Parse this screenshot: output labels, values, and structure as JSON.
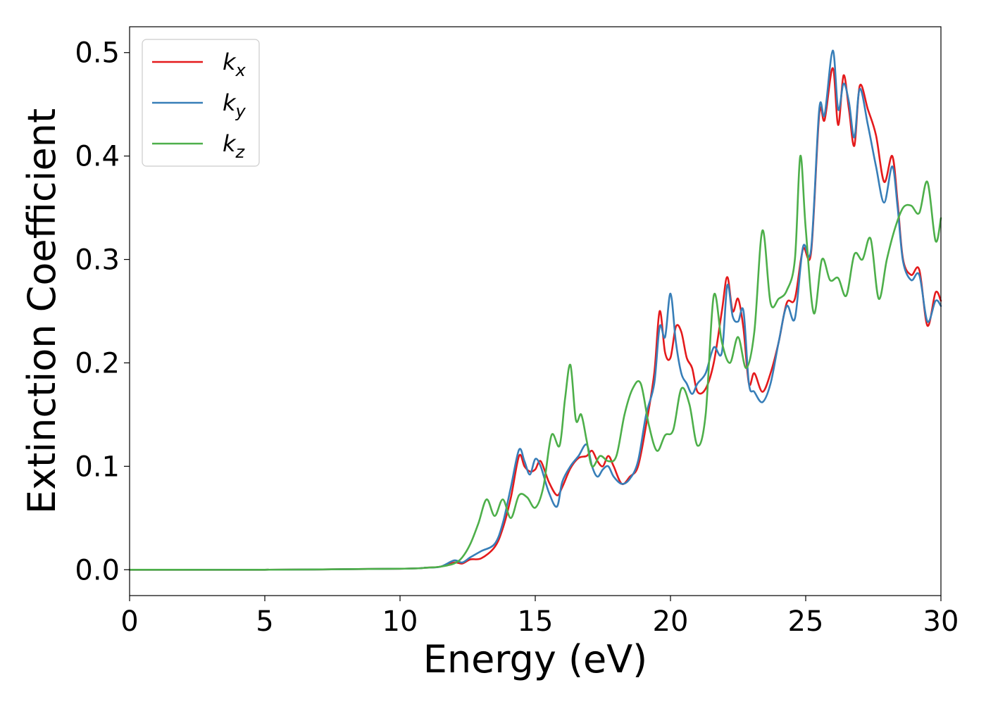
{
  "chart_data": {
    "type": "line",
    "xlabel": "Energy (eV)",
    "ylabel": "Extinction Coefficient",
    "xlim": [
      0,
      30
    ],
    "ylim": [
      -0.025,
      0.525
    ],
    "xticks": [
      "0",
      "5",
      "10",
      "15",
      "20",
      "25",
      "30"
    ],
    "yticks": [
      "0.0",
      "0.1",
      "0.2",
      "0.3",
      "0.4",
      "0.5"
    ],
    "grid": false,
    "legend_position": "top-left",
    "series": [
      {
        "name": "k_x",
        "label_base": "k",
        "label_sub": "x",
        "color": "#e41a1c",
        "x": [
          0,
          5,
          10,
          11,
          11.5,
          12,
          12.3,
          12.6,
          13,
          13.5,
          13.8,
          14.1,
          14.4,
          14.6,
          14.8,
          15,
          15.2,
          15.5,
          15.8,
          16,
          16.3,
          16.6,
          16.9,
          17.1,
          17.3,
          17.5,
          17.7,
          17.9,
          18.2,
          18.5,
          18.8,
          19.1,
          19.4,
          19.6,
          19.8,
          20,
          20.2,
          20.4,
          20.6,
          20.8,
          21,
          21.3,
          21.6,
          21.9,
          22.1,
          22.3,
          22.5,
          22.7,
          22.9,
          23.1,
          23.4,
          23.7,
          24,
          24.3,
          24.6,
          24.9,
          25.2,
          25.5,
          25.7,
          26,
          26.2,
          26.4,
          26.6,
          26.8,
          27,
          27.3,
          27.6,
          27.9,
          28.2,
          28.4,
          28.6,
          28.9,
          29.2,
          29.5,
          29.8,
          30
        ],
        "y": [
          0,
          0,
          0.001,
          0.002,
          0.003,
          0.007,
          0.006,
          0.01,
          0.011,
          0.022,
          0.04,
          0.07,
          0.11,
          0.1,
          0.095,
          0.097,
          0.105,
          0.085,
          0.072,
          0.08,
          0.098,
          0.108,
          0.11,
          0.115,
          0.105,
          0.1,
          0.11,
          0.1,
          0.083,
          0.09,
          0.1,
          0.14,
          0.19,
          0.25,
          0.21,
          0.205,
          0.235,
          0.23,
          0.205,
          0.195,
          0.172,
          0.175,
          0.2,
          0.25,
          0.283,
          0.25,
          0.262,
          0.233,
          0.18,
          0.19,
          0.172,
          0.19,
          0.22,
          0.258,
          0.262,
          0.31,
          0.307,
          0.44,
          0.435,
          0.485,
          0.43,
          0.478,
          0.445,
          0.41,
          0.468,
          0.445,
          0.42,
          0.375,
          0.4,
          0.355,
          0.3,
          0.285,
          0.29,
          0.236,
          0.268,
          0.26
        ]
      },
      {
        "name": "k_y",
        "label_base": "k",
        "label_sub": "y",
        "color": "#377eb8",
        "x": [
          0,
          5,
          10,
          11,
          11.5,
          12,
          12.3,
          12.6,
          13,
          13.5,
          13.8,
          14.1,
          14.4,
          14.6,
          14.8,
          15,
          15.2,
          15.5,
          15.8,
          16,
          16.3,
          16.6,
          16.9,
          17.1,
          17.3,
          17.5,
          17.7,
          17.9,
          18.2,
          18.5,
          18.8,
          19.1,
          19.4,
          19.6,
          19.8,
          20,
          20.2,
          20.4,
          20.6,
          20.8,
          21,
          21.3,
          21.6,
          21.9,
          22.1,
          22.3,
          22.5,
          22.7,
          22.9,
          23.1,
          23.4,
          23.7,
          24,
          24.3,
          24.6,
          24.9,
          25.2,
          25.5,
          25.7,
          26,
          26.2,
          26.4,
          26.6,
          26.8,
          27,
          27.3,
          27.6,
          27.9,
          28.2,
          28.4,
          28.6,
          28.9,
          29.2,
          29.5,
          29.8,
          30
        ],
        "y": [
          0,
          0,
          0.001,
          0.002,
          0.003,
          0.009,
          0.007,
          0.012,
          0.018,
          0.025,
          0.045,
          0.08,
          0.116,
          0.105,
          0.092,
          0.107,
          0.1,
          0.075,
          0.061,
          0.085,
          0.1,
          0.11,
          0.121,
          0.1,
          0.09,
          0.097,
          0.1,
          0.09,
          0.083,
          0.088,
          0.105,
          0.15,
          0.18,
          0.235,
          0.225,
          0.267,
          0.22,
          0.19,
          0.18,
          0.17,
          0.18,
          0.19,
          0.215,
          0.21,
          0.275,
          0.245,
          0.24,
          0.25,
          0.18,
          0.172,
          0.162,
          0.18,
          0.22,
          0.255,
          0.243,
          0.312,
          0.31,
          0.445,
          0.44,
          0.502,
          0.445,
          0.47,
          0.452,
          0.418,
          0.465,
          0.43,
          0.39,
          0.355,
          0.39,
          0.35,
          0.298,
          0.28,
          0.285,
          0.24,
          0.26,
          0.255
        ]
      },
      {
        "name": "k_z",
        "label_base": "k",
        "label_sub": "z",
        "color": "#4daf4a",
        "x": [
          0,
          5,
          10,
          11,
          11.5,
          12,
          12.3,
          12.6,
          12.9,
          13.2,
          13.5,
          13.8,
          14.1,
          14.4,
          14.7,
          15,
          15.3,
          15.6,
          15.9,
          16.1,
          16.3,
          16.5,
          16.7,
          16.9,
          17.1,
          17.4,
          17.7,
          18,
          18.3,
          18.6,
          18.9,
          19.2,
          19.5,
          19.8,
          20.1,
          20.4,
          20.7,
          21,
          21.3,
          21.6,
          21.9,
          22.2,
          22.5,
          22.8,
          23.1,
          23.4,
          23.7,
          24,
          24.3,
          24.6,
          24.8,
          25,
          25.3,
          25.6,
          25.9,
          26.2,
          26.5,
          26.8,
          27.1,
          27.4,
          27.7,
          28,
          28.3,
          28.6,
          28.9,
          29.2,
          29.5,
          29.8,
          30
        ],
        "y": [
          0,
          0,
          0.001,
          0.002,
          0.003,
          0.006,
          0.012,
          0.025,
          0.045,
          0.068,
          0.052,
          0.068,
          0.05,
          0.072,
          0.07,
          0.06,
          0.08,
          0.13,
          0.12,
          0.165,
          0.198,
          0.145,
          0.15,
          0.125,
          0.1,
          0.11,
          0.105,
          0.11,
          0.15,
          0.175,
          0.18,
          0.14,
          0.115,
          0.13,
          0.135,
          0.175,
          0.16,
          0.12,
          0.15,
          0.265,
          0.22,
          0.2,
          0.225,
          0.195,
          0.23,
          0.328,
          0.258,
          0.262,
          0.27,
          0.3,
          0.4,
          0.33,
          0.248,
          0.3,
          0.28,
          0.282,
          0.265,
          0.305,
          0.3,
          0.32,
          0.262,
          0.3,
          0.33,
          0.35,
          0.352,
          0.345,
          0.375,
          0.318,
          0.34
        ]
      }
    ]
  }
}
